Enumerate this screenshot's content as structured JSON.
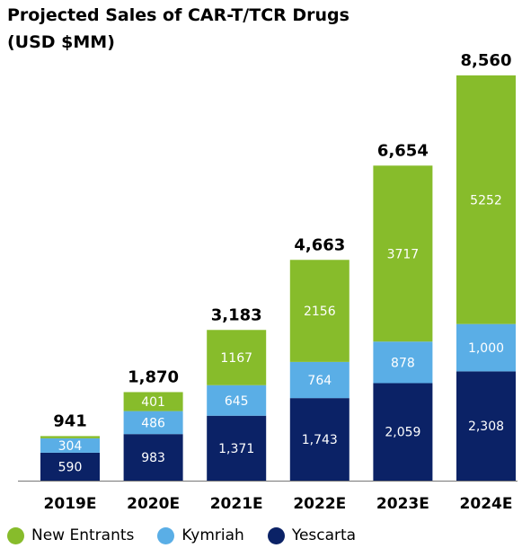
{
  "chart_data": {
    "type": "bar",
    "stacked": true,
    "title": "Projected Sales of CAR-T/TCR Drugs",
    "subtitle": "(USD $MM)",
    "categories": [
      "2019E",
      "2020E",
      "2021E",
      "2022E",
      "2023E",
      "2024E"
    ],
    "series": [
      {
        "name": "Yescarta",
        "color": "#0b2266",
        "values": [
          590,
          983,
          1371,
          1743,
          2059,
          2308
        ],
        "labels": [
          "590",
          "983",
          "1,371",
          "1,743",
          "2,059",
          "2,308"
        ]
      },
      {
        "name": "Kymriah",
        "color": "#5aaee6",
        "values": [
          304,
          486,
          645,
          764,
          878,
          1000
        ],
        "labels": [
          "304",
          "486",
          "645",
          "764",
          "878",
          "1,000"
        ]
      },
      {
        "name": "New Entrants",
        "color": "#87bc2b",
        "values": [
          47,
          401,
          1167,
          2156,
          3717,
          5252
        ],
        "labels": [
          "",
          "401",
          "1167",
          "2156",
          "3717",
          "5252"
        ]
      }
    ],
    "totals": [
      941,
      1870,
      3183,
      4663,
      6654,
      8560
    ],
    "total_labels": [
      "941",
      "1,870",
      "3,183",
      "4,663",
      "6,654",
      "8,560"
    ],
    "ylim": [
      0,
      9000
    ],
    "grid": false,
    "legend": {
      "position": "bottom",
      "order": [
        "New Entrants",
        "Kymriah",
        "Yescarta"
      ]
    }
  }
}
